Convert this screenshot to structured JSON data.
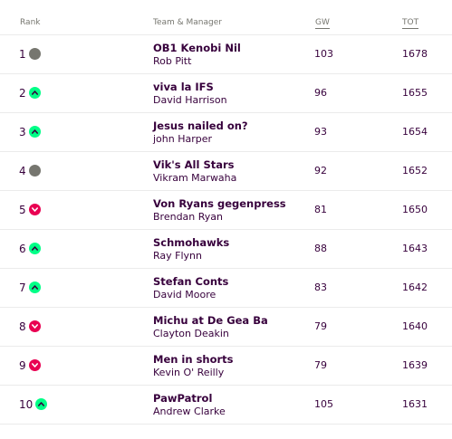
{
  "headers": {
    "rank": "Rank",
    "team_manager": "Team & Manager",
    "gw": "GW",
    "tot": "TOT"
  },
  "colors": {
    "same": "#76766f",
    "up": "#00ff87",
    "down": "#e90052",
    "text": "#37003c"
  },
  "rows": [
    {
      "rank": "1",
      "movement": "same",
      "team": "OB1 Kenobi Nil",
      "manager": "Rob Pitt",
      "gw": "103",
      "tot": "1678"
    },
    {
      "rank": "2",
      "movement": "up",
      "team": "viva la IFS",
      "manager": "David Harrison",
      "gw": "96",
      "tot": "1655"
    },
    {
      "rank": "3",
      "movement": "up",
      "team": "Jesus nailed on?",
      "manager": "john Harper",
      "gw": "93",
      "tot": "1654"
    },
    {
      "rank": "4",
      "movement": "same",
      "team": "Vik's All Stars",
      "manager": "Vikram Marwaha",
      "gw": "92",
      "tot": "1652"
    },
    {
      "rank": "5",
      "movement": "down",
      "team": "Von Ryans gegenpress",
      "manager": "Brendan Ryan",
      "gw": "81",
      "tot": "1650"
    },
    {
      "rank": "6",
      "movement": "up",
      "team": "Schmohawks",
      "manager": "Ray Flynn",
      "gw": "88",
      "tot": "1643"
    },
    {
      "rank": "7",
      "movement": "up",
      "team": "Stefan Conts",
      "manager": "David Moore",
      "gw": "83",
      "tot": "1642"
    },
    {
      "rank": "8",
      "movement": "down",
      "team": "Michu at De Gea Ba",
      "manager": "Clayton Deakin",
      "gw": "79",
      "tot": "1640"
    },
    {
      "rank": "9",
      "movement": "down",
      "team": "Men in shorts",
      "manager": "Kevin O' Reilly",
      "gw": "79",
      "tot": "1639"
    },
    {
      "rank": "10",
      "movement": "up",
      "team": "PawPatrol",
      "manager": "Andrew Clarke",
      "gw": "105",
      "tot": "1631"
    }
  ]
}
